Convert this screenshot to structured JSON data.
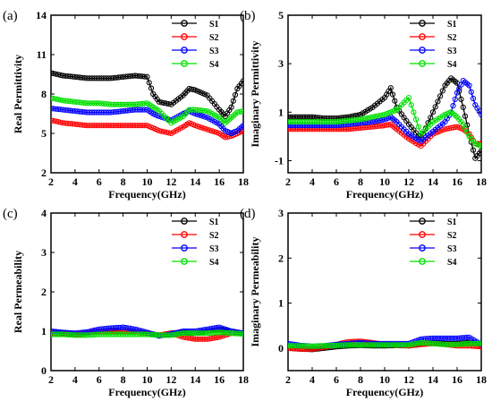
{
  "chart_data": [
    {
      "type": "line",
      "panel_label": "(a)",
      "xlabel": "Frequency(GHz)",
      "ylabel": "Real Permittivity",
      "xlim": [
        2,
        18
      ],
      "ylim": [
        2,
        14
      ],
      "xticks": [
        2,
        4,
        6,
        8,
        10,
        12,
        14,
        16,
        18
      ],
      "yticks": [
        2,
        5,
        8,
        11,
        14
      ],
      "legend_position": "top-right",
      "x": [
        2,
        3,
        4,
        5,
        6,
        7,
        8,
        9,
        10,
        10.5,
        11,
        12,
        13,
        13.5,
        14,
        15,
        16,
        16.5,
        17,
        17.5,
        18
      ],
      "series": [
        {
          "name": "S1",
          "color": "#000000",
          "values": [
            9.6,
            9.4,
            9.3,
            9.2,
            9.2,
            9.2,
            9.3,
            9.4,
            9.3,
            8.0,
            7.4,
            7.2,
            7.9,
            8.4,
            8.3,
            7.9,
            6.8,
            6.3,
            7.0,
            8.4,
            9.0
          ]
        },
        {
          "name": "S2",
          "color": "#ff0000",
          "values": [
            6.0,
            5.8,
            5.7,
            5.6,
            5.6,
            5.6,
            5.6,
            5.6,
            5.6,
            5.4,
            5.2,
            5.0,
            5.5,
            5.8,
            5.6,
            5.3,
            5.0,
            4.7,
            4.8,
            5.0,
            5.2
          ]
        },
        {
          "name": "S3",
          "color": "#0000ff",
          "values": [
            6.9,
            6.8,
            6.7,
            6.6,
            6.6,
            6.6,
            6.7,
            6.8,
            6.8,
            6.5,
            6.3,
            6.0,
            6.5,
            6.7,
            6.5,
            6.2,
            5.7,
            5.2,
            5.0,
            5.2,
            5.6
          ]
        },
        {
          "name": "S4",
          "color": "#00e000",
          "values": [
            7.7,
            7.5,
            7.4,
            7.3,
            7.3,
            7.2,
            7.2,
            7.2,
            7.3,
            7.0,
            6.7,
            5.8,
            6.3,
            6.8,
            6.8,
            6.7,
            6.2,
            5.8,
            6.2,
            6.6,
            6.7
          ]
        }
      ]
    },
    {
      "type": "line",
      "panel_label": "(b)",
      "xlabel": "Frequency(GHz)",
      "ylabel": "Imaginary Permittivity",
      "xlim": [
        2,
        18
      ],
      "ylim": [
        -1.5,
        5
      ],
      "xticks": [
        2,
        4,
        6,
        8,
        10,
        12,
        14,
        16,
        18
      ],
      "yticks": [
        -1,
        1,
        3,
        5
      ],
      "legend_position": "top-right",
      "x": [
        2,
        3,
        4,
        5,
        6,
        7,
        8,
        9,
        10,
        10.5,
        11,
        12,
        13,
        14,
        15,
        15.5,
        16,
        16.5,
        17,
        17.5,
        18
      ],
      "series": [
        {
          "name": "S1",
          "color": "#000000",
          "values": [
            0.8,
            0.8,
            0.8,
            0.75,
            0.75,
            0.8,
            0.9,
            1.2,
            1.6,
            2.0,
            1.2,
            0.5,
            -0.1,
            1.0,
            2.1,
            2.4,
            2.2,
            1.2,
            0.1,
            -0.9,
            -0.6
          ]
        },
        {
          "name": "S2",
          "color": "#ff0000",
          "values": [
            0.3,
            0.3,
            0.3,
            0.3,
            0.3,
            0.3,
            0.35,
            0.4,
            0.45,
            0.5,
            0.3,
            -0.1,
            -0.4,
            0.1,
            0.3,
            0.35,
            0.4,
            0.3,
            0.1,
            -0.3,
            -0.3
          ]
        },
        {
          "name": "S3",
          "color": "#0000ff",
          "values": [
            0.45,
            0.45,
            0.45,
            0.45,
            0.45,
            0.5,
            0.55,
            0.6,
            0.7,
            0.8,
            0.6,
            0.1,
            -0.2,
            0.2,
            0.6,
            1.0,
            1.8,
            2.3,
            2.1,
            1.3,
            0.9
          ]
        },
        {
          "name": "S4",
          "color": "#00e000",
          "values": [
            0.6,
            0.6,
            0.6,
            0.6,
            0.6,
            0.65,
            0.7,
            0.8,
            0.9,
            1.0,
            1.1,
            1.6,
            0.1,
            0.6,
            0.9,
            1.0,
            0.8,
            0.5,
            0.0,
            -0.3,
            -0.4
          ]
        }
      ]
    },
    {
      "type": "line",
      "panel_label": "(c)",
      "xlabel": "Frequency(GHz)",
      "ylabel": "Real Permeability",
      "xlim": [
        2,
        18
      ],
      "ylim": [
        0,
        4
      ],
      "xticks": [
        2,
        4,
        6,
        8,
        10,
        12,
        14,
        16,
        18
      ],
      "yticks": [
        0,
        1,
        2,
        3,
        4
      ],
      "legend_position": "top-right",
      "x": [
        2,
        3,
        4,
        5,
        6,
        7,
        8,
        9,
        10,
        11,
        12,
        13,
        14,
        15,
        16,
        17,
        18
      ],
      "series": [
        {
          "name": "S1",
          "color": "#000000",
          "values": [
            1.0,
            0.95,
            0.92,
            0.95,
            1.0,
            1.02,
            1.0,
            0.98,
            0.95,
            0.9,
            0.95,
            0.97,
            0.95,
            1.0,
            1.05,
            1.0,
            0.95
          ]
        },
        {
          "name": "S2",
          "color": "#ff0000",
          "values": [
            0.95,
            0.93,
            0.92,
            0.95,
            1.0,
            1.0,
            1.0,
            0.98,
            0.95,
            0.9,
            0.95,
            0.85,
            0.8,
            0.8,
            0.85,
            0.95,
            0.95
          ]
        },
        {
          "name": "S3",
          "color": "#0000ff",
          "values": [
            1.0,
            0.97,
            0.95,
            0.98,
            1.05,
            1.08,
            1.1,
            1.05,
            0.97,
            0.88,
            0.93,
            1.0,
            1.0,
            1.05,
            1.1,
            1.0,
            0.95
          ]
        },
        {
          "name": "S4",
          "color": "#00e000",
          "values": [
            0.92,
            0.92,
            0.9,
            0.9,
            0.92,
            0.92,
            0.92,
            0.92,
            0.92,
            0.9,
            0.9,
            0.95,
            0.95,
            0.95,
            0.97,
            0.95,
            0.93
          ]
        }
      ]
    },
    {
      "type": "line",
      "panel_label": "(d)",
      "xlabel": "Frequency(GHz)",
      "ylabel": "Imaginary Permeability",
      "xlim": [
        2,
        18
      ],
      "ylim": [
        -0.5,
        3
      ],
      "xticks": [
        2,
        4,
        6,
        8,
        10,
        12,
        14,
        16,
        18
      ],
      "yticks": [
        0,
        1,
        2,
        3
      ],
      "legend_position": "top-right",
      "x": [
        2,
        3,
        4,
        5,
        6,
        7,
        8,
        9,
        10,
        11,
        12,
        13,
        14,
        15,
        16,
        17,
        18
      ],
      "series": [
        {
          "name": "S1",
          "color": "#000000",
          "values": [
            0.0,
            -0.02,
            -0.03,
            0.0,
            0.03,
            0.05,
            0.06,
            0.05,
            0.05,
            0.06,
            0.05,
            0.1,
            0.12,
            0.1,
            0.1,
            0.12,
            0.1
          ]
        },
        {
          "name": "S2",
          "color": "#ff0000",
          "values": [
            0.0,
            -0.02,
            -0.02,
            0.02,
            0.08,
            0.14,
            0.15,
            0.12,
            0.08,
            0.07,
            0.05,
            0.08,
            0.1,
            0.08,
            0.05,
            0.05,
            0.03
          ]
        },
        {
          "name": "S3",
          "color": "#0000ff",
          "values": [
            0.1,
            0.06,
            0.04,
            0.05,
            0.08,
            0.1,
            0.12,
            0.1,
            0.1,
            0.1,
            0.1,
            0.2,
            0.22,
            0.22,
            0.22,
            0.24,
            0.08
          ]
        },
        {
          "name": "S4",
          "color": "#00e000",
          "values": [
            0.05,
            0.05,
            0.04,
            0.05,
            0.06,
            0.07,
            0.07,
            0.07,
            0.07,
            0.07,
            0.07,
            0.12,
            0.1,
            0.08,
            0.08,
            0.1,
            0.1
          ]
        }
      ]
    }
  ]
}
